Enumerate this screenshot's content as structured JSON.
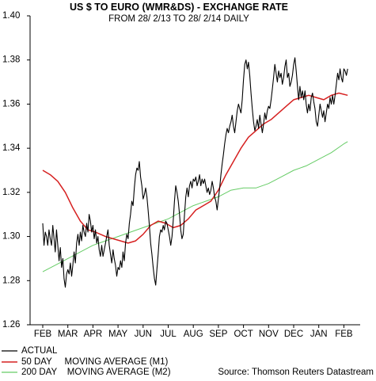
{
  "chart_data": {
    "type": "line",
    "title": "US $ TO EURO (WMR&DS) - EXCHANGE RATE",
    "subtitle": "FROM 28/ 2/13 TO 28/ 2/14 DAILY",
    "source": "Source: Thomson Reuters Datastream",
    "ylim": [
      1.26,
      1.4
    ],
    "yticks": [
      "1.26",
      "1.28",
      "1.30",
      "1.32",
      "1.34",
      "1.36",
      "1.38",
      "1.40"
    ],
    "categories": [
      "FEB",
      "MAR",
      "APR",
      "MAY",
      "JUN",
      "JUL",
      "AUG",
      "SEP",
      "OCT",
      "NOV",
      "DEC",
      "JAN",
      "FEB"
    ],
    "grid": false,
    "legend_position": "bottom-left",
    "series": [
      {
        "name": "ACTUAL",
        "legend_label": "ACTUAL",
        "color": "#000000",
        "values": [
          [
            0.0,
            1.306
          ],
          [
            0.05,
            1.296
          ],
          [
            0.1,
            1.302
          ],
          [
            0.15,
            1.3
          ],
          [
            0.2,
            1.296
          ],
          [
            0.25,
            1.303
          ],
          [
            0.3,
            1.299
          ],
          [
            0.35,
            1.296
          ],
          [
            0.4,
            1.305
          ],
          [
            0.45,
            1.299
          ],
          [
            0.5,
            1.293
          ],
          [
            0.55,
            1.303
          ],
          [
            0.6,
            1.296
          ],
          [
            0.65,
            1.289
          ],
          [
            0.7,
            1.295
          ],
          [
            0.75,
            1.286
          ],
          [
            0.8,
            1.29
          ],
          [
            0.85,
            1.281
          ],
          [
            0.9,
            1.277
          ],
          [
            0.95,
            1.283
          ],
          [
            1.0,
            1.285
          ],
          [
            1.05,
            1.283
          ],
          [
            1.1,
            1.288
          ],
          [
            1.15,
            1.282
          ],
          [
            1.2,
            1.287
          ],
          [
            1.25,
            1.293
          ],
          [
            1.3,
            1.288
          ],
          [
            1.35,
            1.297
          ],
          [
            1.4,
            1.301
          ],
          [
            1.45,
            1.296
          ],
          [
            1.5,
            1.302
          ],
          [
            1.55,
            1.298
          ],
          [
            1.6,
            1.305
          ],
          [
            1.65,
            1.302
          ],
          [
            1.7,
            1.3
          ],
          [
            1.75,
            1.306
          ],
          [
            1.8,
            1.302
          ],
          [
            1.85,
            1.31
          ],
          [
            1.9,
            1.307
          ],
          [
            1.95,
            1.302
          ],
          [
            2.0,
            1.305
          ],
          [
            2.05,
            1.299
          ],
          [
            2.1,
            1.303
          ],
          [
            2.15,
            1.297
          ],
          [
            2.2,
            1.3
          ],
          [
            2.25,
            1.294
          ],
          [
            2.3,
            1.291
          ],
          [
            2.35,
            1.296
          ],
          [
            2.4,
            1.291
          ],
          [
            2.45,
            1.294
          ],
          [
            2.5,
            1.297
          ],
          [
            2.55,
            1.3
          ],
          [
            2.6,
            1.303
          ],
          [
            2.65,
            1.296
          ],
          [
            2.7,
            1.292
          ],
          [
            2.75,
            1.288
          ],
          [
            2.8,
            1.294
          ],
          [
            2.85,
            1.29
          ],
          [
            2.9,
            1.287
          ],
          [
            2.95,
            1.282
          ],
          [
            3.0,
            1.286
          ],
          [
            3.05,
            1.285
          ],
          [
            3.1,
            1.289
          ],
          [
            3.15,
            1.286
          ],
          [
            3.2,
            1.293
          ],
          [
            3.25,
            1.289
          ],
          [
            3.3,
            1.297
          ],
          [
            3.35,
            1.301
          ],
          [
            3.4,
            1.299
          ],
          [
            3.45,
            1.306
          ],
          [
            3.5,
            1.31
          ],
          [
            3.55,
            1.316
          ],
          [
            3.6,
            1.314
          ],
          [
            3.65,
            1.322
          ],
          [
            3.7,
            1.328
          ],
          [
            3.75,
            1.331
          ],
          [
            3.8,
            1.33
          ],
          [
            3.85,
            1.334
          ],
          [
            3.9,
            1.327
          ],
          [
            3.95,
            1.323
          ],
          [
            4.0,
            1.317
          ],
          [
            4.05,
            1.319
          ],
          [
            4.1,
            1.322
          ],
          [
            4.15,
            1.318
          ],
          [
            4.2,
            1.312
          ],
          [
            4.25,
            1.305
          ],
          [
            4.3,
            1.297
          ],
          [
            4.35,
            1.292
          ],
          [
            4.4,
            1.286
          ],
          [
            4.45,
            1.281
          ],
          [
            4.5,
            1.278
          ],
          [
            4.55,
            1.285
          ],
          [
            4.6,
            1.292
          ],
          [
            4.65,
            1.3
          ],
          [
            4.7,
            1.303
          ],
          [
            4.75,
            1.302
          ],
          [
            4.8,
            1.305
          ],
          [
            4.85,
            1.303
          ],
          [
            4.9,
            1.307
          ],
          [
            4.95,
            1.306
          ],
          [
            5.0,
            1.303
          ],
          [
            5.05,
            1.3
          ],
          [
            5.1,
            1.296
          ],
          [
            5.15,
            1.3
          ],
          [
            5.2,
            1.307
          ],
          [
            5.25,
            1.316
          ],
          [
            5.3,
            1.323
          ],
          [
            5.35,
            1.32
          ],
          [
            5.4,
            1.316
          ],
          [
            5.45,
            1.31
          ],
          [
            5.5,
            1.303
          ],
          [
            5.55,
            1.299
          ],
          [
            5.6,
            1.301
          ],
          [
            5.65,
            1.31
          ],
          [
            5.7,
            1.318
          ],
          [
            5.75,
            1.322
          ],
          [
            5.8,
            1.318
          ],
          [
            5.85,
            1.323
          ],
          [
            5.9,
            1.325
          ],
          [
            5.95,
            1.322
          ],
          [
            6.0,
            1.326
          ],
          [
            6.05,
            1.325
          ],
          [
            6.1,
            1.327
          ],
          [
            6.15,
            1.323
          ],
          [
            6.2,
            1.325
          ],
          [
            6.25,
            1.328
          ],
          [
            6.3,
            1.323
          ],
          [
            6.35,
            1.326
          ],
          [
            6.4,
            1.324
          ],
          [
            6.45,
            1.326
          ],
          [
            6.5,
            1.323
          ],
          [
            6.55,
            1.32
          ],
          [
            6.6,
            1.322
          ],
          [
            6.65,
            1.319
          ],
          [
            6.7,
            1.321
          ],
          [
            6.75,
            1.325
          ],
          [
            6.8,
            1.322
          ],
          [
            6.85,
            1.318
          ],
          [
            6.9,
            1.316
          ],
          [
            6.95,
            1.312
          ],
          [
            7.0,
            1.317
          ],
          [
            7.05,
            1.322
          ],
          [
            7.1,
            1.328
          ],
          [
            7.15,
            1.333
          ],
          [
            7.2,
            1.337
          ],
          [
            7.25,
            1.342
          ],
          [
            7.3,
            1.346
          ],
          [
            7.35,
            1.349
          ],
          [
            7.4,
            1.347
          ],
          [
            7.45,
            1.35
          ],
          [
            7.5,
            1.352
          ],
          [
            7.55,
            1.355
          ],
          [
            7.6,
            1.35
          ],
          [
            7.65,
            1.347
          ],
          [
            7.7,
            1.352
          ],
          [
            7.75,
            1.357
          ],
          [
            7.8,
            1.36
          ],
          [
            7.85,
            1.358
          ],
          [
            7.9,
            1.356
          ],
          [
            7.95,
            1.362
          ],
          [
            8.0,
            1.371
          ],
          [
            8.05,
            1.378
          ],
          [
            8.1,
            1.38
          ],
          [
            8.15,
            1.376
          ],
          [
            8.2,
            1.379
          ],
          [
            8.25,
            1.373
          ],
          [
            8.3,
            1.365
          ],
          [
            8.35,
            1.358
          ],
          [
            8.4,
            1.352
          ],
          [
            8.45,
            1.348
          ],
          [
            8.5,
            1.35
          ],
          [
            8.55,
            1.353
          ],
          [
            8.6,
            1.349
          ],
          [
            8.65,
            1.355
          ],
          [
            8.7,
            1.351
          ],
          [
            8.75,
            1.347
          ],
          [
            8.8,
            1.351
          ],
          [
            8.85,
            1.356
          ],
          [
            8.9,
            1.353
          ],
          [
            8.95,
            1.357
          ],
          [
            9.0,
            1.359
          ],
          [
            9.05,
            1.358
          ],
          [
            9.1,
            1.362
          ],
          [
            9.15,
            1.367
          ],
          [
            9.2,
            1.372
          ],
          [
            9.25,
            1.378
          ],
          [
            9.3,
            1.374
          ],
          [
            9.35,
            1.37
          ],
          [
            9.4,
            1.375
          ],
          [
            9.45,
            1.372
          ],
          [
            9.5,
            1.374
          ],
          [
            9.55,
            1.369
          ],
          [
            9.6,
            1.372
          ],
          [
            9.65,
            1.377
          ],
          [
            9.7,
            1.38
          ],
          [
            9.75,
            1.372
          ],
          [
            9.8,
            1.374
          ],
          [
            9.85,
            1.368
          ],
          [
            9.9,
            1.37
          ],
          [
            9.95,
            1.373
          ],
          [
            10.0,
            1.378
          ],
          [
            10.05,
            1.381
          ],
          [
            10.1,
            1.375
          ],
          [
            10.15,
            1.368
          ],
          [
            10.2,
            1.362
          ],
          [
            10.25,
            1.368
          ],
          [
            10.3,
            1.363
          ],
          [
            10.35,
            1.366
          ],
          [
            10.4,
            1.362
          ],
          [
            10.45,
            1.366
          ],
          [
            10.5,
            1.36
          ],
          [
            10.55,
            1.356
          ],
          [
            10.6,
            1.36
          ],
          [
            10.65,
            1.357
          ],
          [
            10.7,
            1.363
          ],
          [
            10.75,
            1.365
          ],
          [
            10.8,
            1.361
          ],
          [
            10.85,
            1.358
          ],
          [
            10.9,
            1.352
          ],
          [
            10.95,
            1.35
          ],
          [
            11.0,
            1.355
          ],
          [
            11.05,
            1.36
          ],
          [
            11.1,
            1.357
          ],
          [
            11.15,
            1.354
          ],
          [
            11.2,
            1.357
          ],
          [
            11.25,
            1.352
          ],
          [
            11.3,
            1.356
          ],
          [
            11.35,
            1.36
          ],
          [
            11.4,
            1.358
          ],
          [
            11.45,
            1.363
          ],
          [
            11.5,
            1.36
          ],
          [
            11.55,
            1.364
          ],
          [
            11.6,
            1.36
          ],
          [
            11.65,
            1.364
          ],
          [
            11.7,
            1.369
          ],
          [
            11.75,
            1.374
          ],
          [
            11.8,
            1.371
          ],
          [
            11.85,
            1.376
          ],
          [
            11.9,
            1.372
          ],
          [
            11.95,
            1.37
          ],
          [
            12.0,
            1.376
          ],
          [
            12.05,
            1.375
          ],
          [
            12.1,
            1.373
          ],
          [
            12.15,
            1.376
          ]
        ]
      },
      {
        "name": "50 DAY MOVING AVERAGE (M1)",
        "legend_label": "50 DAY     MOVING AVERAGE (M1)",
        "color": "#d62020",
        "values": [
          [
            0.0,
            1.33
          ],
          [
            0.3,
            1.328
          ],
          [
            0.6,
            1.325
          ],
          [
            0.9,
            1.32
          ],
          [
            1.2,
            1.313
          ],
          [
            1.5,
            1.307
          ],
          [
            1.8,
            1.303
          ],
          [
            2.1,
            1.302
          ],
          [
            2.5,
            1.3
          ],
          [
            2.8,
            1.299
          ],
          [
            3.1,
            1.298
          ],
          [
            3.4,
            1.297
          ],
          [
            3.7,
            1.298
          ],
          [
            4.0,
            1.301
          ],
          [
            4.3,
            1.305
          ],
          [
            4.6,
            1.307
          ],
          [
            4.9,
            1.306
          ],
          [
            5.2,
            1.304
          ],
          [
            5.5,
            1.305
          ],
          [
            5.8,
            1.308
          ],
          [
            6.1,
            1.312
          ],
          [
            6.4,
            1.314
          ],
          [
            6.7,
            1.316
          ],
          [
            7.0,
            1.321
          ],
          [
            7.3,
            1.328
          ],
          [
            7.6,
            1.334
          ],
          [
            7.9,
            1.34
          ],
          [
            8.2,
            1.345
          ],
          [
            8.5,
            1.348
          ],
          [
            8.8,
            1.351
          ],
          [
            9.1,
            1.353
          ],
          [
            9.4,
            1.356
          ],
          [
            9.7,
            1.359
          ],
          [
            10.0,
            1.362
          ],
          [
            10.3,
            1.363
          ],
          [
            10.6,
            1.364
          ],
          [
            10.9,
            1.363
          ],
          [
            11.2,
            1.362
          ],
          [
            11.5,
            1.364
          ],
          [
            11.8,
            1.365
          ],
          [
            12.15,
            1.364
          ]
        ]
      },
      {
        "name": "200 DAY MOVING AVERAGE (M2)",
        "legend_label": "200 DAY    MOVING AVERAGE (M2)",
        "color": "#66cc66",
        "values": [
          [
            0.0,
            1.284
          ],
          [
            0.5,
            1.287
          ],
          [
            1.0,
            1.29
          ],
          [
            1.5,
            1.293
          ],
          [
            2.0,
            1.296
          ],
          [
            2.5,
            1.298
          ],
          [
            3.0,
            1.3
          ],
          [
            3.5,
            1.302
          ],
          [
            4.0,
            1.304
          ],
          [
            4.5,
            1.306
          ],
          [
            5.0,
            1.308
          ],
          [
            5.5,
            1.311
          ],
          [
            6.0,
            1.314
          ],
          [
            6.5,
            1.316
          ],
          [
            7.0,
            1.318
          ],
          [
            7.5,
            1.321
          ],
          [
            8.0,
            1.322
          ],
          [
            8.5,
            1.322
          ],
          [
            9.0,
            1.324
          ],
          [
            9.5,
            1.327
          ],
          [
            10.0,
            1.33
          ],
          [
            10.5,
            1.332
          ],
          [
            11.0,
            1.335
          ],
          [
            11.5,
            1.338
          ],
          [
            12.0,
            1.342
          ],
          [
            12.15,
            1.343
          ]
        ]
      }
    ]
  }
}
